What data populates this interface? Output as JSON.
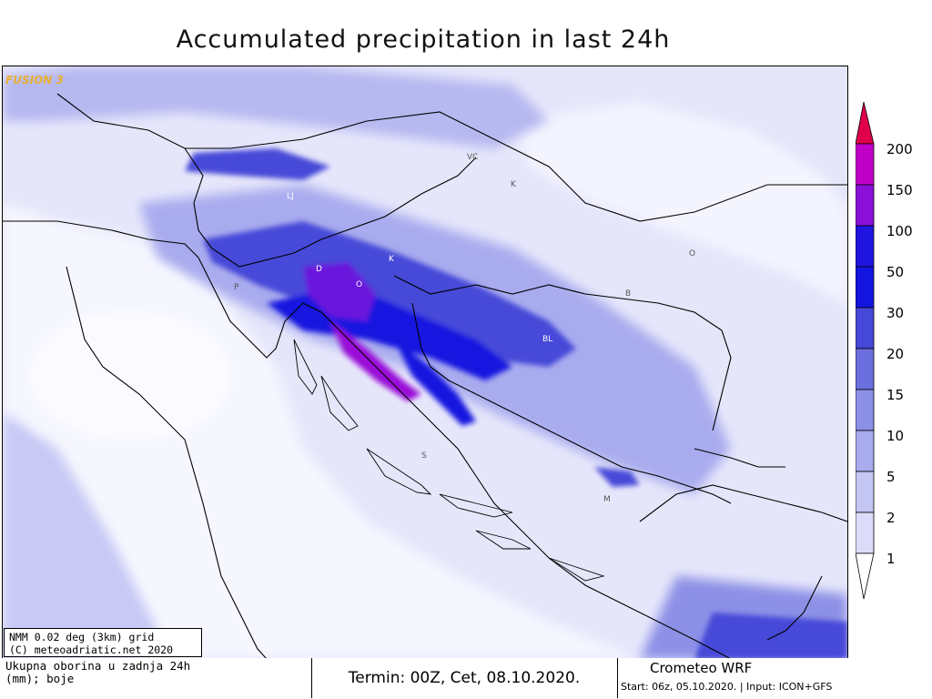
{
  "map": {
    "title": "Accumulated precipitation in last 24h",
    "brand": "FUSION 3",
    "place_labels": [
      {
        "id": "lj",
        "text": "LJ"
      },
      {
        "id": "d",
        "text": "D"
      },
      {
        "id": "o",
        "text": "O"
      },
      {
        "id": "k",
        "text": "K"
      },
      {
        "id": "p",
        "text": "P"
      },
      {
        "id": "bl",
        "text": "BL"
      },
      {
        "id": "vc",
        "text": "VC"
      },
      {
        "id": "k2",
        "text": "K"
      },
      {
        "id": "s",
        "text": "S"
      },
      {
        "id": "m",
        "text": "M"
      },
      {
        "id": "o2",
        "text": "O"
      },
      {
        "id": "b",
        "text": "B"
      }
    ],
    "colors": {
      "c1": "#f2f2ff",
      "c2": "#dcdcfa",
      "c5": "#c4c6f4",
      "c10": "#a8abee",
      "c15": "#8c90e6",
      "c20": "#6c70de",
      "c30": "#4648d8",
      "c50": "#1414e0",
      "c100": "#6a18dc",
      "c150": "#9a10d8",
      "c200": "#e0004a"
    }
  },
  "info_box": {
    "line1": "NMM 0.02 deg (3km) grid",
    "line2": "(C) meteoadriatic.net 2020"
  },
  "footer": {
    "desc_line1": "Ukupna oborina u zadnja 24h",
    "desc_line2": "(mm); boje",
    "termin": "Termin: 00Z, Cet, 08.10.2020.",
    "model": "Crometeo WRF",
    "start": "Start: 06z, 05.10.2020. | Input: ICON+GFS"
  },
  "legend": {
    "levels": [
      "200",
      "150",
      "100",
      "50",
      "30",
      "20",
      "15",
      "10",
      "5",
      "2",
      "1"
    ]
  }
}
